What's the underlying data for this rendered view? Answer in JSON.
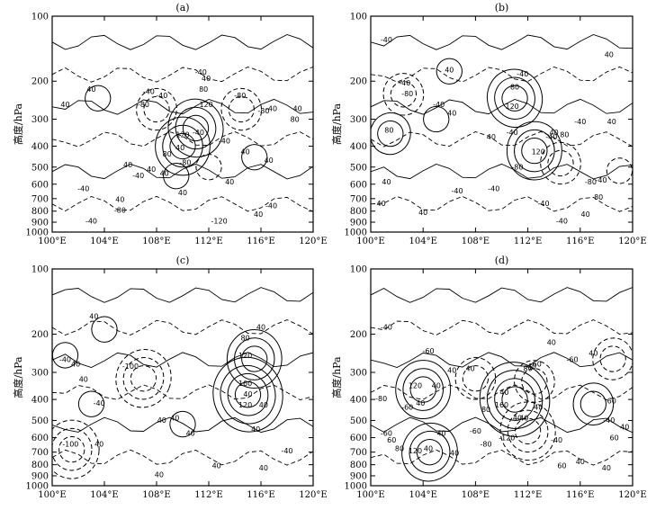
{
  "figure": {
    "panels": [
      {
        "label": "(a)",
        "ylabel": "高度/hPa",
        "contour_labels": [
          "40",
          "-80",
          "-40",
          "80",
          "-40",
          "120",
          "40",
          "40",
          "-40",
          "-80",
          "-40",
          "120",
          "-40",
          "80",
          "-80",
          "40",
          "40",
          "40",
          "40",
          "-40",
          "40",
          "80",
          "40",
          "-40",
          "40",
          "40",
          "-80",
          "40",
          "-40",
          "-120",
          "-80",
          "40",
          "-40",
          "-40",
          "40"
        ]
      },
      {
        "label": "(b)",
        "ylabel": "高度/hPa",
        "contour_labels": [
          "-40",
          "-80",
          "40",
          "80",
          "-40",
          "120",
          "40",
          "-40",
          "80",
          "-40",
          "120",
          "-40",
          "40",
          "-40",
          "80",
          "-80",
          "40",
          "40",
          "-40",
          "40",
          "80",
          "-40",
          "40",
          "40",
          "-40",
          "-40",
          "-80",
          "-40",
          "-40",
          "40",
          "40"
        ]
      },
      {
        "label": "(c)",
        "ylabel": "高度/hPa",
        "contour_labels": [
          "40",
          "40",
          "-40",
          "-100",
          "40",
          "40",
          "40",
          "80",
          "120",
          "40",
          "160",
          "40",
          "40",
          "120",
          "40",
          "40",
          "-40",
          "-40",
          "40",
          "40",
          "-100",
          "40",
          "40"
        ]
      },
      {
        "label": "(d)",
        "ylabel": "高度/hPa",
        "contour_labels": [
          "-40",
          "-60",
          "40",
          "40",
          "-60",
          "80",
          "-80",
          "40",
          "120",
          "40",
          "-60",
          "40",
          "160",
          "40",
          "40",
          "-40",
          "-60",
          "40",
          "40",
          "-40",
          "60",
          "80",
          "-40",
          "-120",
          "60",
          "40",
          "-60",
          "80",
          "-80",
          "40",
          "120",
          "-40",
          "60",
          "-60",
          "40",
          "40",
          "40",
          "40",
          "60"
        ]
      }
    ]
  },
  "chart_data": [
    {
      "type": "contour",
      "title": "(a)",
      "xlabel": "",
      "ylabel": "高度/hPa",
      "x_ticks": [
        "100°E",
        "104°E",
        "108°E",
        "112°E",
        "116°E",
        "120°E"
      ],
      "y_ticks": [
        "100",
        "200",
        "300",
        "400",
        "500",
        "600",
        "700",
        "800",
        "900",
        "1000"
      ],
      "xlim": [
        100,
        120
      ],
      "ylim": [
        1000,
        100
      ],
      "yscale": "log",
      "centers": [
        {
          "lon": 111.0,
          "p": 330,
          "value": 120
        },
        {
          "lon": 110.0,
          "p": 400,
          "value": 120
        },
        {
          "lon": 108.0,
          "p": 270,
          "value": -80
        },
        {
          "lon": 114.5,
          "p": 270,
          "value": -80
        },
        {
          "lon": 103.5,
          "p": 240,
          "value": 40
        },
        {
          "lon": 115.5,
          "p": 450,
          "value": 40
        },
        {
          "lon": 109.5,
          "p": 550,
          "value": 40
        },
        {
          "lon": 112.0,
          "p": 500,
          "value": -40
        }
      ]
    },
    {
      "type": "contour",
      "title": "(b)",
      "xlabel": "",
      "ylabel": "高度/hPa",
      "x_ticks": [
        "100°E",
        "104°E",
        "108°E",
        "112°E",
        "116°E",
        "120°E"
      ],
      "y_ticks": [
        "100",
        "200",
        "300",
        "400",
        "500",
        "600",
        "700",
        "800",
        "900",
        "1000"
      ],
      "xlim": [
        100,
        120
      ],
      "ylim": [
        1000,
        100
      ],
      "yscale": "log",
      "centers": [
        {
          "lon": 111.0,
          "p": 240,
          "value": 120
        },
        {
          "lon": 112.5,
          "p": 420,
          "value": 120
        },
        {
          "lon": 101.5,
          "p": 350,
          "value": 80
        },
        {
          "lon": 102.5,
          "p": 230,
          "value": -80
        },
        {
          "lon": 106.0,
          "p": 180,
          "value": 40
        },
        {
          "lon": 105.0,
          "p": 300,
          "value": 40
        },
        {
          "lon": 114.5,
          "p": 480,
          "value": -80
        },
        {
          "lon": 119.0,
          "p": 520,
          "value": -40
        }
      ]
    },
    {
      "type": "contour",
      "title": "(c)",
      "xlabel": "",
      "ylabel": "高度/hPa",
      "x_ticks": [
        "100°E",
        "104°E",
        "108°E",
        "112°E",
        "116°E",
        "120°E"
      ],
      "y_ticks": [
        "100",
        "200",
        "300",
        "400",
        "500",
        "600",
        "700",
        "800",
        "900",
        "1000"
      ],
      "xlim": [
        100,
        120
      ],
      "ylim": [
        1000,
        100
      ],
      "yscale": "log",
      "centers": [
        {
          "lon": 115.0,
          "p": 380,
          "value": 160
        },
        {
          "lon": 115.5,
          "p": 260,
          "value": 120
        },
        {
          "lon": 107.0,
          "p": 320,
          "value": -100
        },
        {
          "lon": 103.0,
          "p": 420,
          "value": 40
        },
        {
          "lon": 104.0,
          "p": 190,
          "value": 40
        },
        {
          "lon": 101.0,
          "p": 250,
          "value": 40
        },
        {
          "lon": 110.0,
          "p": 520,
          "value": 40
        },
        {
          "lon": 101.5,
          "p": 680,
          "value": -100
        }
      ]
    },
    {
      "type": "contour",
      "title": "(d)",
      "xlabel": "",
      "ylabel": "高度/hPa",
      "x_ticks": [
        "100°E",
        "104°E",
        "108°E",
        "112°E",
        "116°E",
        "120°E"
      ],
      "y_ticks": [
        "100",
        "200",
        "300",
        "400",
        "500",
        "600",
        "700",
        "800",
        "900",
        "1000"
      ],
      "xlim": [
        100,
        120
      ],
      "ylim": [
        1000,
        100
      ],
      "yscale": "log",
      "centers": [
        {
          "lon": 111.0,
          "p": 400,
          "value": 160
        },
        {
          "lon": 104.0,
          "p": 360,
          "value": 120
        },
        {
          "lon": 104.5,
          "p": 700,
          "value": 120
        },
        {
          "lon": 112.5,
          "p": 330,
          "value": -60
        },
        {
          "lon": 108.0,
          "p": 320,
          "value": -60
        },
        {
          "lon": 118.5,
          "p": 260,
          "value": -60
        },
        {
          "lon": 112.0,
          "p": 560,
          "value": -120
        },
        {
          "lon": 117.0,
          "p": 420,
          "value": 60
        }
      ]
    }
  ]
}
